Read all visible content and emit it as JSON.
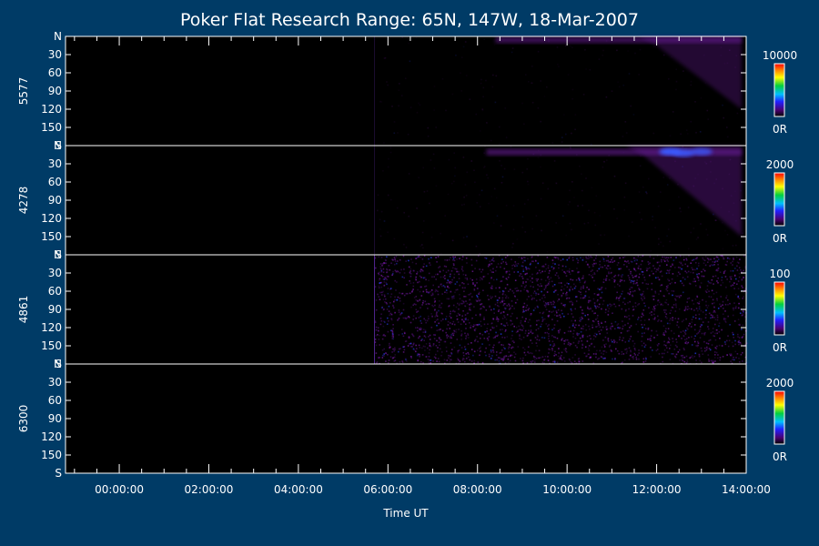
{
  "colors": {
    "background": "#003b66",
    "plot_background": "#000000",
    "foreground": "#ffffff",
    "emission": "#6a1a9a",
    "emission_bright": "#3a5aff"
  },
  "chart_data": {
    "type": "heatmap",
    "title": "Poker Flat Research Range: 65N, 147W, 18-Mar-2007",
    "xlabel": "Time UT",
    "x_ticks": [
      "00:00:00",
      "02:00:00",
      "04:00:00",
      "06:00:00",
      "08:00:00",
      "10:00:00",
      "12:00:00",
      "14:00:00"
    ],
    "x_range_hours": [
      -1.2,
      14.0
    ],
    "y_ticks": [
      "N",
      "30",
      "60",
      "90",
      "120",
      "150",
      "S"
    ],
    "y_range_deg": [
      0,
      180
    ],
    "panels": [
      {
        "name": "5577",
        "colorbar": {
          "max_label": "10000",
          "min_label": "0R"
        },
        "data_start_hour": 5.7,
        "noise_density": 0.02,
        "noise_opacity": 0.18,
        "arc_bands": [
          {
            "t0": 8.4,
            "t1": 13.9,
            "zenith_deg": 5,
            "intensity": 0.55
          }
        ],
        "wedge": {
          "t_start": 11.6,
          "t_end": 13.9,
          "max_zenith_deg": 120,
          "intensity": 0.55
        },
        "bright_spots": []
      },
      {
        "name": "4278",
        "colorbar": {
          "max_label": "2000",
          "min_label": "0R"
        },
        "data_start_hour": 5.7,
        "noise_density": 0.03,
        "noise_opacity": 0.2,
        "arc_bands": [
          {
            "t0": 8.2,
            "t1": 13.9,
            "zenith_deg": 10,
            "intensity": 0.6
          }
        ],
        "wedge": {
          "t_start": 11.3,
          "t_end": 13.9,
          "max_zenith_deg": 150,
          "intensity": 0.65
        },
        "bright_spots": [
          {
            "t": 12.3,
            "zenith_deg": 10,
            "intensity": 1.0
          },
          {
            "t": 12.6,
            "zenith_deg": 12,
            "intensity": 0.9
          },
          {
            "t": 13.0,
            "zenith_deg": 10,
            "intensity": 0.8
          }
        ]
      },
      {
        "name": "4861",
        "colorbar": {
          "max_label": "100",
          "min_label": "0R"
        },
        "data_start_hour": 5.7,
        "noise_density": 0.35,
        "noise_opacity": 0.75,
        "arc_bands": [],
        "wedge": null,
        "bright_spots": []
      },
      {
        "name": "6300",
        "colorbar": {
          "max_label": "2000",
          "min_label": "0R"
        },
        "data_start_hour": null,
        "noise_density": 0,
        "noise_opacity": 0,
        "arc_bands": [],
        "wedge": null,
        "bright_spots": []
      }
    ]
  }
}
